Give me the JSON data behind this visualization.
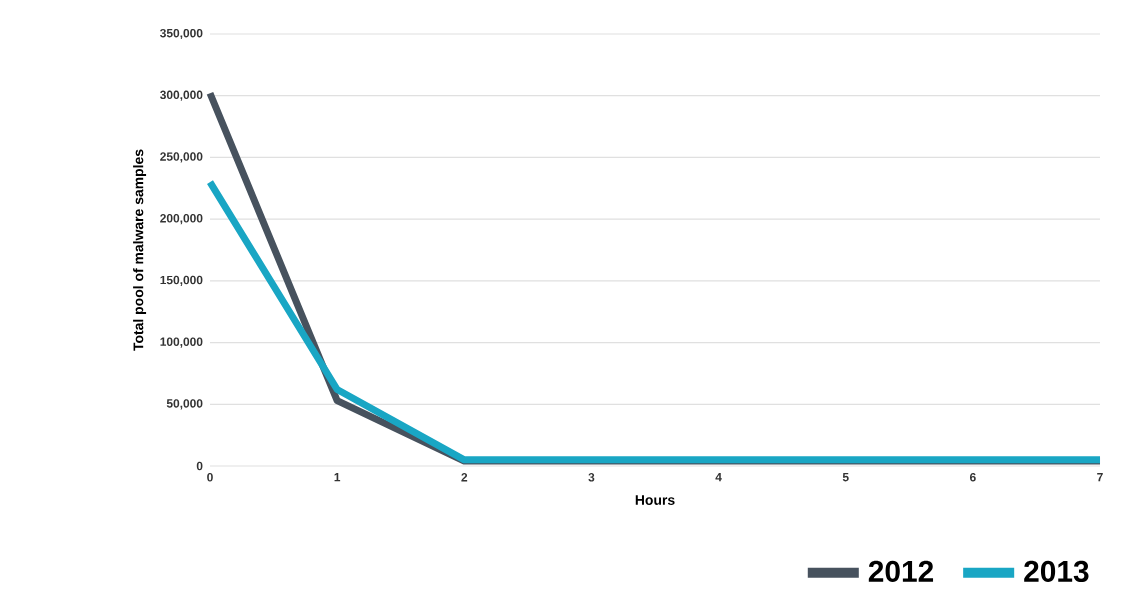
{
  "chart_data": {
    "type": "line",
    "xlabel": "Hours",
    "ylabel": "Total pool of malware samples",
    "x": [
      0,
      1,
      2,
      3,
      4,
      5,
      6,
      7
    ],
    "series": [
      {
        "name": "2012",
        "color": "#47525e",
        "values": [
          302000,
          53000,
          4000,
          4000,
          4000,
          4000,
          4000,
          4000
        ]
      },
      {
        "name": "2013",
        "color": "#19a6c4",
        "values": [
          230000,
          62000,
          5000,
          5000,
          5000,
          5000,
          5000,
          5000
        ]
      }
    ],
    "xlim": [
      0,
      7
    ],
    "ylim": [
      0,
      350000
    ],
    "xticks": [
      0,
      1,
      2,
      3,
      4,
      5,
      6,
      7
    ],
    "yticks": [
      {
        "value": 0,
        "label": "0"
      },
      {
        "value": 50000,
        "label": "50,000"
      },
      {
        "value": 100000,
        "label": "100,000"
      },
      {
        "value": 150000,
        "label": "150,000"
      },
      {
        "value": 200000,
        "label": "200,000"
      },
      {
        "value": 250000,
        "label": "250,000"
      },
      {
        "value": 300000,
        "label": "300,000"
      },
      {
        "value": 350000,
        "label": "350,000"
      }
    ],
    "grid": "y",
    "legend": "bottom right",
    "line_style": "solid"
  }
}
